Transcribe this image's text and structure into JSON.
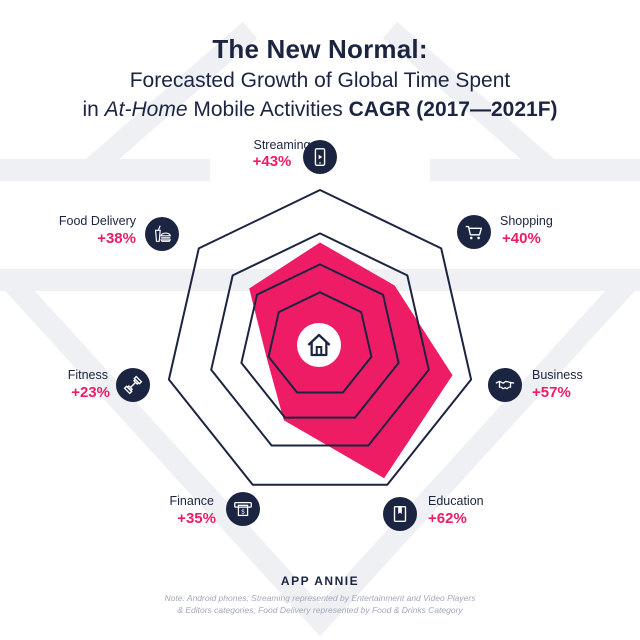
{
  "title": "The New Normal:",
  "subtitle_line1": "Forecasted Growth of Global Time Spent",
  "subtitle_line2_prefix": "in",
  "subtitle_line2_italic": "At-Home",
  "subtitle_line2_mid": "Mobile Activities",
  "subtitle_line2_bold": "CAGR (2017—2021F)",
  "brand": "APP ANNIE",
  "note_line1": "Note: Android phones; Streaming represented by Entertainment and Video Players",
  "note_line2": "& Editors categories; Food Delivery represented by Food & Drinks Category",
  "colors": {
    "accent": "#ee1c64",
    "navy": "#1b2440",
    "watermark": "#eef0f4"
  },
  "chart_data": {
    "type": "radar",
    "title": "The New Normal:",
    "subtitle": "Forecasted Growth of Global Time Spent in At-Home Mobile Activities CAGR (2017—2021F)",
    "categories": [
      "Streaming",
      "Shopping",
      "Business",
      "Education",
      "Finance",
      "Fitness",
      "Food Delivery"
    ],
    "values": [
      43,
      40,
      57,
      62,
      35,
      23,
      38
    ],
    "labels": [
      "+43%",
      "+40%",
      "+57%",
      "+62%",
      "+35%",
      "+23%",
      "+38%"
    ],
    "icons": [
      "phone-play-icon",
      "shopping-cart-icon",
      "handshake-icon",
      "book-icon",
      "atm-cash-icon",
      "dumbbell-icon",
      "food-drink-icon"
    ],
    "center_icon": "home-icon",
    "grid": true
  }
}
